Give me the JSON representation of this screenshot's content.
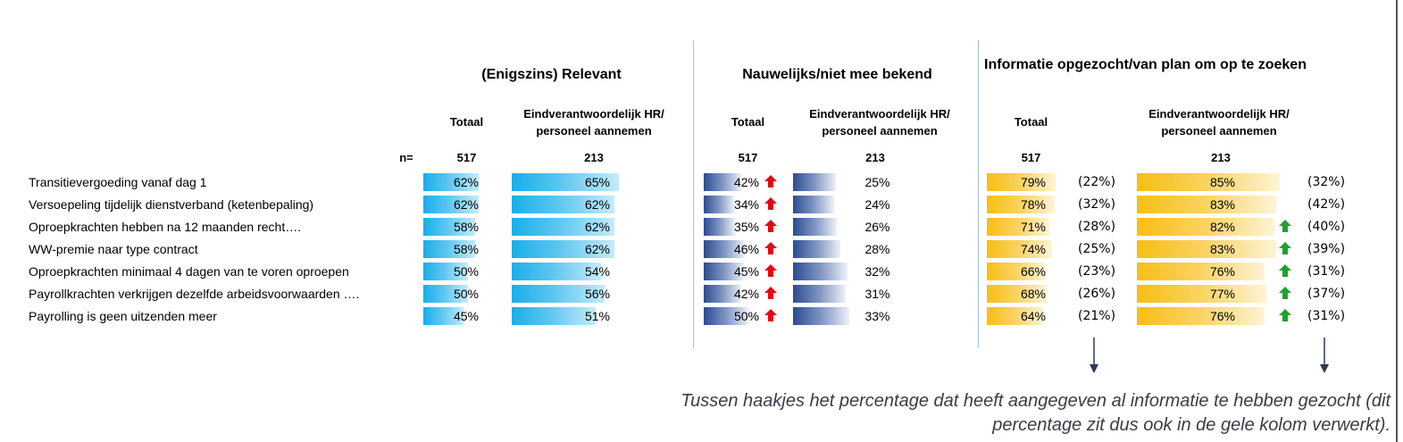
{
  "headers": {
    "relevant": "(Enigszins) Relevant",
    "bekend": "Nauwelijks/niet mee bekend",
    "info": "Informatie opgezocht/van plan om op te zoeken"
  },
  "subheaders": {
    "totaal": "Totaal",
    "hr": "Eindverantwoordelijk HR/ personeel aannemen"
  },
  "n_label": "n=",
  "n_values": {
    "totaal": "517",
    "hr": "213"
  },
  "note": "Tussen haakjes het percentage dat heeft aangegeven al informatie te hebben gezocht (dit percentage zit dus ook in de gele kolom verwerkt).",
  "colors": {
    "blue": "#19aeea",
    "navy": "#2c4c91",
    "yellow": "#f8be13",
    "up_red": "#e30613",
    "up_green": "#1fa12e"
  },
  "chart_data": {
    "type": "table",
    "rows": [
      "Transitievergoeding vanaf dag 1",
      "Versoepeling tijdelijk dienstverband (ketenbepaling)",
      "Oproepkrachten hebben na 12 maanden recht….",
      "WW-premie naar type contract",
      "Oproepkrachten minimaal 4 dagen van te voren oproepen",
      "Payrollkrachten verkrijgen dezelfde arbeidsvoorwaarden ….",
      "Payrolling is geen uitzenden meer"
    ],
    "relevant_totaal": [
      62,
      62,
      58,
      58,
      50,
      50,
      45
    ],
    "relevant_hr": [
      65,
      62,
      62,
      62,
      54,
      56,
      51
    ],
    "bekend_totaal": [
      42,
      34,
      35,
      46,
      45,
      42,
      50
    ],
    "bekend_totaal_up": [
      true,
      true,
      true,
      true,
      true,
      true,
      true
    ],
    "bekend_hr": [
      25,
      24,
      26,
      28,
      32,
      31,
      33
    ],
    "info_totaal": [
      79,
      78,
      71,
      74,
      66,
      68,
      64
    ],
    "info_totaal_searched": [
      "(22%)",
      "(32%)",
      "(28%)",
      "(25%)",
      "(23%)",
      "(26%)",
      "(21%)"
    ],
    "info_hr": [
      85,
      83,
      82,
      83,
      76,
      77,
      76
    ],
    "info_hr_up": [
      false,
      false,
      true,
      true,
      true,
      true,
      true
    ],
    "info_hr_searched": [
      "(32%)",
      "(42%)",
      "(40%)",
      "(39%)",
      "(31%)",
      "(37%)",
      "(31%)"
    ]
  }
}
